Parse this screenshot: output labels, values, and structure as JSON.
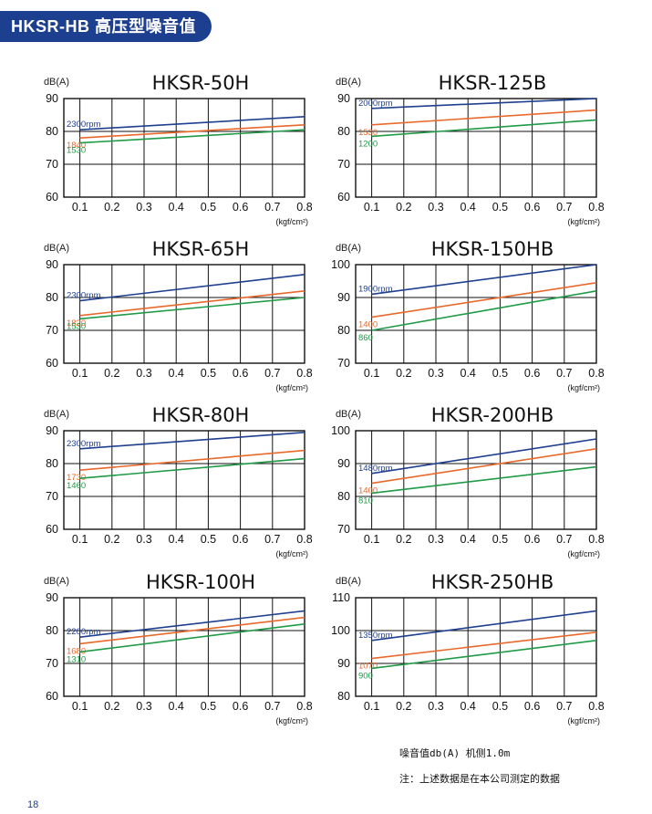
{
  "header": {
    "title": "HKSR-HB 高压型噪音值"
  },
  "notes": {
    "line1": "噪音值db(A)   机侧1.0m",
    "line2": "注：上述数据是在本公司测定的数据"
  },
  "page_number": "18",
  "colors": {
    "blue": "#1f3f8f",
    "orange": "#e8692a",
    "green": "#1f9a46",
    "header": "#1d3f8f"
  },
  "chart_data": [
    {
      "type": "line",
      "title": "HKSR-50H",
      "ylabel": "dB(A)",
      "xunit": "(kgf/cm²)",
      "xticks": [
        "0.1",
        "0.2",
        "0.3",
        "0.4",
        "0.5",
        "0.6",
        "0.7",
        "0.8"
      ],
      "yticks": [
        "60",
        "70",
        "80",
        "90"
      ],
      "ylim": [
        60,
        90
      ],
      "xlim": [
        0.05,
        0.8
      ],
      "series": [
        {
          "name": "2300rpm",
          "color": "blue",
          "x": [
            0.1,
            0.8
          ],
          "y": [
            80.5,
            84.5
          ]
        },
        {
          "name": "1840",
          "color": "orange",
          "x": [
            0.1,
            0.8
          ],
          "y": [
            78,
            82
          ]
        },
        {
          "name": "1530",
          "color": "green",
          "x": [
            0.1,
            0.8
          ],
          "y": [
            76.5,
            80.5
          ]
        }
      ]
    },
    {
      "type": "line",
      "title": "HKSR-125B",
      "ylabel": "dB(A)",
      "xunit": "(kgf/cm²)",
      "xticks": [
        "0.1",
        "0.2",
        "0.3",
        "0.4",
        "0.5",
        "0.6",
        "0.7",
        "0.8"
      ],
      "yticks": [
        "60",
        "70",
        "80",
        "90"
      ],
      "ylim": [
        60,
        90
      ],
      "xlim": [
        0.05,
        0.8
      ],
      "series": [
        {
          "name": "2000rpm",
          "color": "blue",
          "x": [
            0.1,
            0.8
          ],
          "y": [
            87,
            90
          ]
        },
        {
          "name": "1530",
          "color": "orange",
          "x": [
            0.1,
            0.8
          ],
          "y": [
            82,
            86.5
          ]
        },
        {
          "name": "1200",
          "color": "green",
          "x": [
            0.1,
            0.8
          ],
          "y": [
            78.5,
            83.5
          ]
        }
      ]
    },
    {
      "type": "line",
      "title": "HKSR-65H",
      "ylabel": "dB(A)",
      "xunit": "(kgf/cm²)",
      "xticks": [
        "0.1",
        "0.2",
        "0.3",
        "0.4",
        "0.5",
        "0.6",
        "0.7",
        "0.8"
      ],
      "yticks": [
        "60",
        "70",
        "80",
        "90"
      ],
      "ylim": [
        60,
        90
      ],
      "xlim": [
        0.05,
        0.8
      ],
      "series": [
        {
          "name": "2300rpm",
          "color": "blue",
          "x": [
            0.1,
            0.8
          ],
          "y": [
            79,
            87
          ]
        },
        {
          "name": "1820",
          "color": "orange",
          "x": [
            0.1,
            0.8
          ],
          "y": [
            74.5,
            82
          ]
        },
        {
          "name": "1530",
          "color": "green",
          "x": [
            0.1,
            0.8
          ],
          "y": [
            73.5,
            80
          ]
        }
      ]
    },
    {
      "type": "line",
      "title": "HKSR-150HB",
      "ylabel": "dB(A)",
      "xunit": "(kgf/cm²)",
      "xticks": [
        "0.1",
        "0.2",
        "0.3",
        "0.4",
        "0.5",
        "0.6",
        "0.7",
        "0.8"
      ],
      "yticks": [
        "70",
        "80",
        "90",
        "100"
      ],
      "ylim": [
        70,
        100
      ],
      "xlim": [
        0.05,
        0.8
      ],
      "series": [
        {
          "name": "1900rpm",
          "color": "blue",
          "x": [
            0.1,
            0.8
          ],
          "y": [
            91,
            100
          ]
        },
        {
          "name": "1400",
          "color": "orange",
          "x": [
            0.1,
            0.8
          ],
          "y": [
            84,
            94.5
          ]
        },
        {
          "name": "860",
          "color": "green",
          "x": [
            0.1,
            0.8
          ],
          "y": [
            80,
            92
          ]
        }
      ]
    },
    {
      "type": "line",
      "title": "HKSR-80H",
      "ylabel": "dB(A)",
      "xunit": "(kgf/cm²)",
      "xticks": [
        "0.1",
        "0.2",
        "0.3",
        "0.4",
        "0.5",
        "0.6",
        "0.7",
        "0.8"
      ],
      "yticks": [
        "60",
        "70",
        "80",
        "90"
      ],
      "ylim": [
        60,
        90
      ],
      "xlim": [
        0.05,
        0.8
      ],
      "series": [
        {
          "name": "2300rpm",
          "color": "blue",
          "x": [
            0.1,
            0.8
          ],
          "y": [
            84.5,
            89.5
          ]
        },
        {
          "name": "1730",
          "color": "orange",
          "x": [
            0.1,
            0.8
          ],
          "y": [
            78,
            84
          ]
        },
        {
          "name": "1460",
          "color": "green",
          "x": [
            0.1,
            0.8
          ],
          "y": [
            75.5,
            81.5
          ]
        }
      ]
    },
    {
      "type": "line",
      "title": "HKSR-200HB",
      "ylabel": "dB(A)",
      "xunit": "(kgf/cm²)",
      "xticks": [
        "0.1",
        "0.2",
        "0.3",
        "0.4",
        "0.5",
        "0.6",
        "0.7",
        "0.8"
      ],
      "yticks": [
        "70",
        "80",
        "90",
        "100"
      ],
      "ylim": [
        70,
        100
      ],
      "xlim": [
        0.05,
        0.8
      ],
      "series": [
        {
          "name": "1480rpm",
          "color": "blue",
          "x": [
            0.1,
            0.8
          ],
          "y": [
            87,
            97.5
          ]
        },
        {
          "name": "1400",
          "color": "orange",
          "x": [
            0.1,
            0.8
          ],
          "y": [
            84,
            94.5
          ]
        },
        {
          "name": "810",
          "color": "green",
          "x": [
            0.1,
            0.8
          ],
          "y": [
            81,
            89
          ]
        }
      ]
    },
    {
      "type": "line",
      "title": "HKSR-100H",
      "ylabel": "dB(A)",
      "xunit": "(kgf/cm²)",
      "xticks": [
        "0.1",
        "0.2",
        "0.3",
        "0.4",
        "0.5",
        "0.6",
        "0.7",
        "0.8"
      ],
      "yticks": [
        "60",
        "70",
        "80",
        "90"
      ],
      "ylim": [
        60,
        90
      ],
      "xlim": [
        0.05,
        0.8
      ],
      "series": [
        {
          "name": "2200rpm",
          "color": "blue",
          "x": [
            0.1,
            0.8
          ],
          "y": [
            78,
            86
          ]
        },
        {
          "name": "1680",
          "color": "orange",
          "x": [
            0.1,
            0.8
          ],
          "y": [
            76,
            84
          ]
        },
        {
          "name": "1310",
          "color": "green",
          "x": [
            0.1,
            0.8
          ],
          "y": [
            73.5,
            82
          ]
        }
      ]
    },
    {
      "type": "line",
      "title": "HKSR-250HB",
      "ylabel": "dB(A)",
      "xunit": "(kgf/cm²)",
      "xticks": [
        "0.1",
        "0.2",
        "0.3",
        "0.4",
        "0.5",
        "0.6",
        "0.7",
        "0.8"
      ],
      "yticks": [
        "80",
        "90",
        "100",
        "110"
      ],
      "ylim": [
        80,
        110
      ],
      "xlim": [
        0.05,
        0.8
      ],
      "series": [
        {
          "name": "1350rpm",
          "color": "blue",
          "x": [
            0.1,
            0.8
          ],
          "y": [
            97,
            106
          ]
        },
        {
          "name": "1070",
          "color": "orange",
          "x": [
            0.1,
            0.8
          ],
          "y": [
            91.5,
            99.5
          ]
        },
        {
          "name": "900",
          "color": "green",
          "x": [
            0.1,
            0.8
          ],
          "y": [
            88.5,
            97
          ]
        }
      ]
    }
  ]
}
